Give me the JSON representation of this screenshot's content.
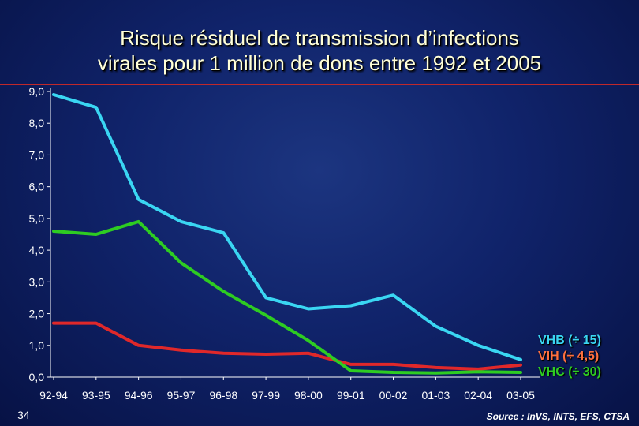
{
  "title": {
    "line1": "Risque résiduel de transmission d’infections",
    "line2": "virales pour 1 million de dons entre 1992 et 2005"
  },
  "page_number": "34",
  "source": "Source : InVS, INTS, EFS, CTSA",
  "colors": {
    "title": "#ffffd8",
    "rule": "#c0282a",
    "VHB": "#3ad6f2",
    "VIH": "#e0282a",
    "VHC": "#2ecc22",
    "legend_VIH_text": "#ff7040",
    "axis": "#ffffff"
  },
  "chart_data": {
    "type": "line",
    "categories": [
      "92-94",
      "93-95",
      "94-96",
      "95-97",
      "96-98",
      "97-99",
      "98-00",
      "99-01",
      "00-02",
      "01-03",
      "02-04",
      "03-05"
    ],
    "ylim": [
      0,
      9
    ],
    "yticks": [
      "0,0",
      "1,0",
      "2,0",
      "3,0",
      "4,0",
      "5,0",
      "6,0",
      "7,0",
      "8,0",
      "9,0"
    ],
    "grid": false,
    "legend_position": "bottom-right",
    "series": [
      {
        "name": "VHB (÷ 15)",
        "key": "VHB",
        "values": [
          8.9,
          8.5,
          5.6,
          4.9,
          4.55,
          2.5,
          2.15,
          2.25,
          2.58,
          1.6,
          1.0,
          0.55
        ]
      },
      {
        "name": "VIH (÷ 4,5)",
        "key": "VIH",
        "values": [
          1.7,
          1.7,
          1.0,
          0.85,
          0.75,
          0.72,
          0.75,
          0.4,
          0.4,
          0.3,
          0.25,
          0.38
        ]
      },
      {
        "name": "VHC (÷ 30)",
        "key": "VHC",
        "values": [
          4.6,
          4.5,
          4.9,
          3.6,
          2.7,
          1.95,
          1.15,
          0.2,
          0.15,
          0.13,
          0.17,
          0.15
        ]
      }
    ]
  }
}
